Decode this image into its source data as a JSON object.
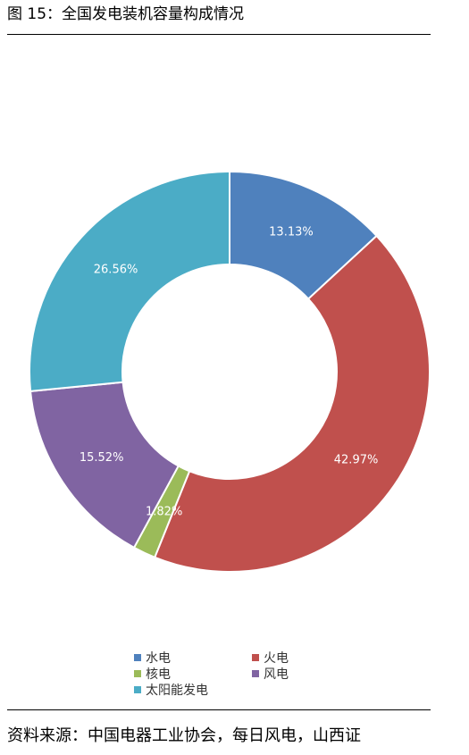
{
  "header": {
    "title": "图 15：全国发电装机容量构成情况"
  },
  "footer": {
    "source": "资料来源：中国电器工业协会，每日风电，山西证"
  },
  "chart_data": {
    "type": "pie",
    "donut": true,
    "title": "",
    "categories": [
      "水电",
      "火电",
      "核电",
      "风电",
      "太阳能发电"
    ],
    "values": [
      13.13,
      42.97,
      1.82,
      15.52,
      26.56
    ],
    "labels": [
      "13.13%",
      "42.97%",
      "1.82%",
      "15.52%",
      "26.56%"
    ],
    "colors": [
      "#4F81BD",
      "#C0504D",
      "#9BBB59",
      "#8064A2",
      "#4BACC6"
    ],
    "legend": "bottom"
  }
}
